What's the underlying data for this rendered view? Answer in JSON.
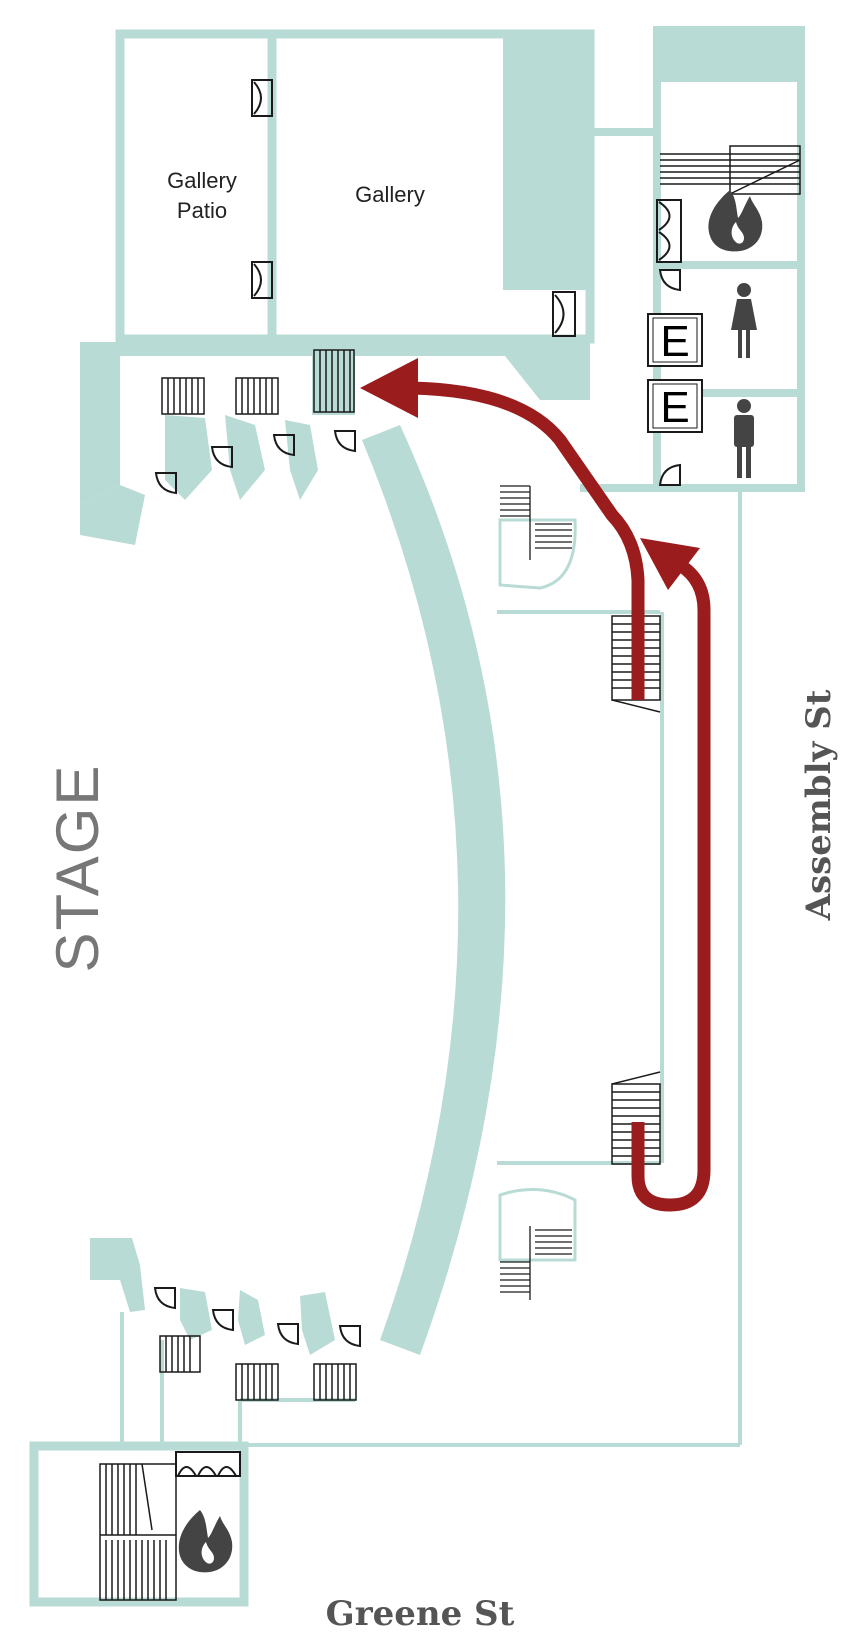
{
  "colors": {
    "wall": "#b9dbd5",
    "route": "#9b1c1c",
    "ink": "#1a1a1a",
    "label": "#777777"
  },
  "rooms": {
    "gallery_patio": [
      "Gallery",
      "Patio"
    ],
    "gallery": "Gallery",
    "stage": "STAGE",
    "elevator": "E"
  },
  "streets": {
    "east": "Assembly St",
    "south": "Greene St"
  },
  "icons": [
    "fire-icon",
    "women-restroom-icon",
    "men-restroom-icon",
    "elevator-icon",
    "route-arrow-icon",
    "door-icon",
    "stair-icon"
  ]
}
